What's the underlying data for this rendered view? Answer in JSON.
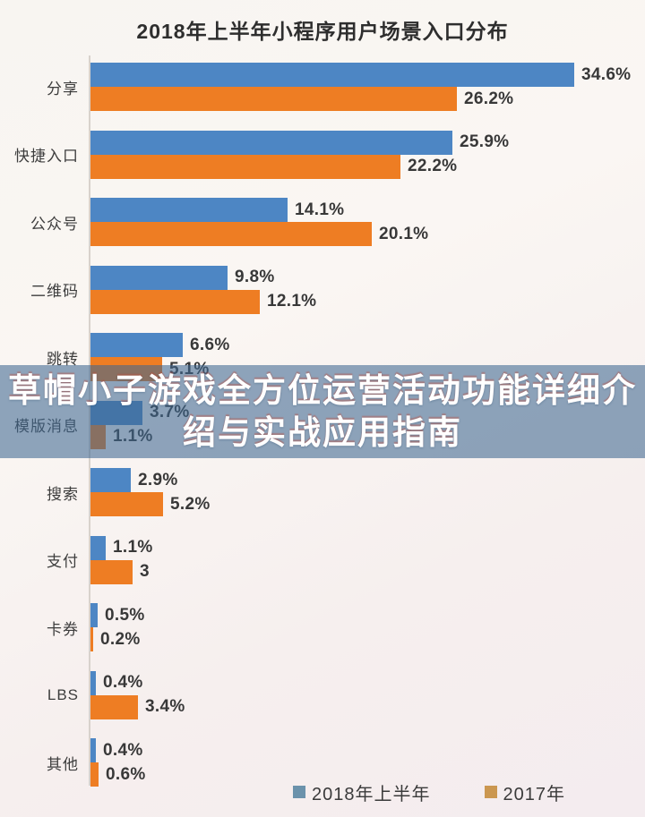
{
  "chart_data": {
    "type": "bar",
    "orientation": "horizontal",
    "title": "2018年上半年小程序用户场景入口分布",
    "categories": [
      "分享",
      "快捷入口",
      "公众号",
      "二维码",
      "跳转",
      "模版消息",
      "搜索",
      "支付",
      "卡券",
      "LBS",
      "其他"
    ],
    "series": [
      {
        "name": "2018年上半年",
        "color": "#4d86c4",
        "values": [
          34.6,
          25.9,
          14.1,
          9.8,
          6.6,
          3.7,
          2.9,
          1.1,
          0.5,
          0.4,
          0.4
        ],
        "labels": [
          "34.6%",
          "25.9%",
          "14.1%",
          "9.8%",
          "6.6%",
          "3.7%",
          "2.9%",
          "1.1%",
          "0.5%",
          "0.4%",
          "0.4%"
        ]
      },
      {
        "name": "2017年",
        "color": "#ee7d23",
        "values": [
          26.2,
          22.2,
          20.1,
          12.1,
          5.1,
          1.1,
          5.2,
          3,
          0.2,
          3.4,
          0.6
        ],
        "labels": [
          "26.2%",
          "22.2%",
          "20.1%",
          "12.1%",
          "5.1%",
          "1.1%",
          "5.2%",
          "3",
          "0.2%",
          "3.4%",
          "0.6%"
        ]
      }
    ],
    "legend": [
      {
        "label": "2018年上半年",
        "swatch_color": "#6b92ab"
      },
      {
        "label": "2017年",
        "swatch_color": "#cb9750"
      }
    ],
    "xlim": [
      0,
      38
    ],
    "grid": false,
    "legend_position": "bottom"
  },
  "overlay": {
    "text": "草帽小子游戏全方位运营活动功能详细介绍与实战应用指南",
    "lines": [
      "草帽小子游戏全方位运营活动功能详细介",
      "绍与实战应用指南"
    ],
    "text_color": "#ffffff",
    "band_color": "rgba(62,104,144,0.58)"
  },
  "colors": {
    "bar_2018": "#4d86c4",
    "bar_2017": "#ee7d23",
    "axis": "#d8d2cc",
    "category_label": "#3d3d3d",
    "value_label": "#383838"
  }
}
